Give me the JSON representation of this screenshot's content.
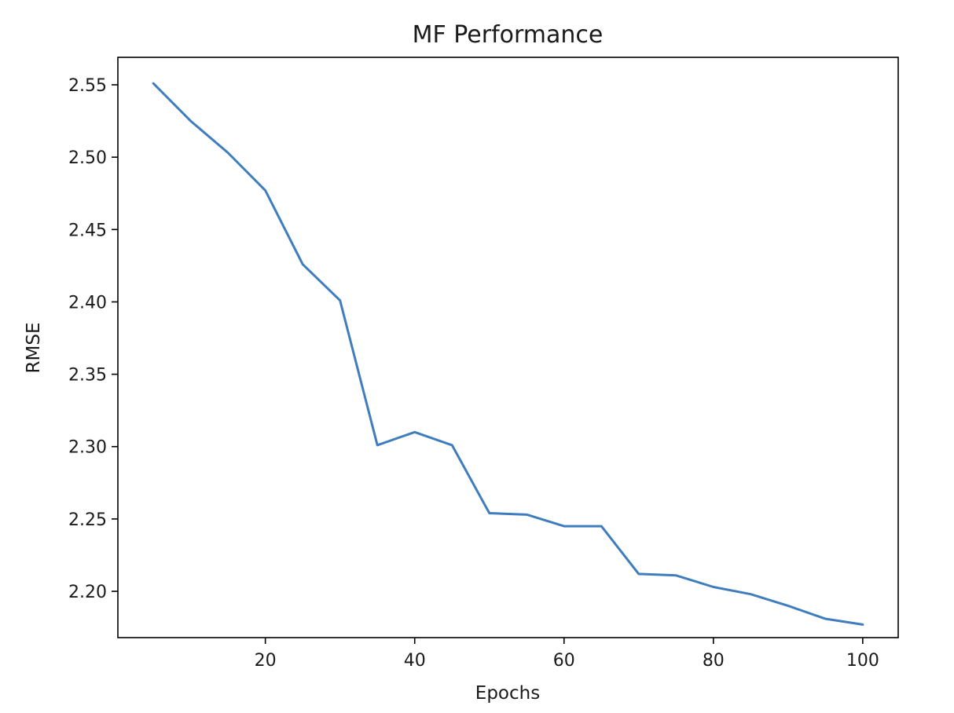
{
  "chart_data": {
    "type": "line",
    "title": "MF Performance",
    "xlabel": "Epochs",
    "ylabel": "RMSE",
    "xlim": [
      0.25,
      104.75
    ],
    "ylim": [
      2.168,
      2.569
    ],
    "grid": false,
    "legend": "none",
    "xticks": [
      20,
      40,
      60,
      80,
      100
    ],
    "xtick_labels": [
      "20",
      "40",
      "60",
      "80",
      "100"
    ],
    "yticks": [
      2.2,
      2.25,
      2.3,
      2.35,
      2.4,
      2.45,
      2.5,
      2.55
    ],
    "ytick_labels": [
      "2.20",
      "2.25",
      "2.30",
      "2.35",
      "2.40",
      "2.45",
      "2.50",
      "2.55"
    ],
    "series": [
      {
        "color": "#3f7dbf",
        "x": [
          5,
          10,
          15,
          20,
          25,
          30,
          35,
          40,
          45,
          50,
          55,
          60,
          65,
          70,
          75,
          80,
          85,
          90,
          95,
          100
        ],
        "y": [
          2.551,
          2.525,
          2.503,
          2.477,
          2.426,
          2.401,
          2.301,
          2.31,
          2.301,
          2.254,
          2.253,
          2.245,
          2.245,
          2.212,
          2.211,
          2.203,
          2.198,
          2.19,
          2.181,
          2.177
        ]
      }
    ]
  }
}
